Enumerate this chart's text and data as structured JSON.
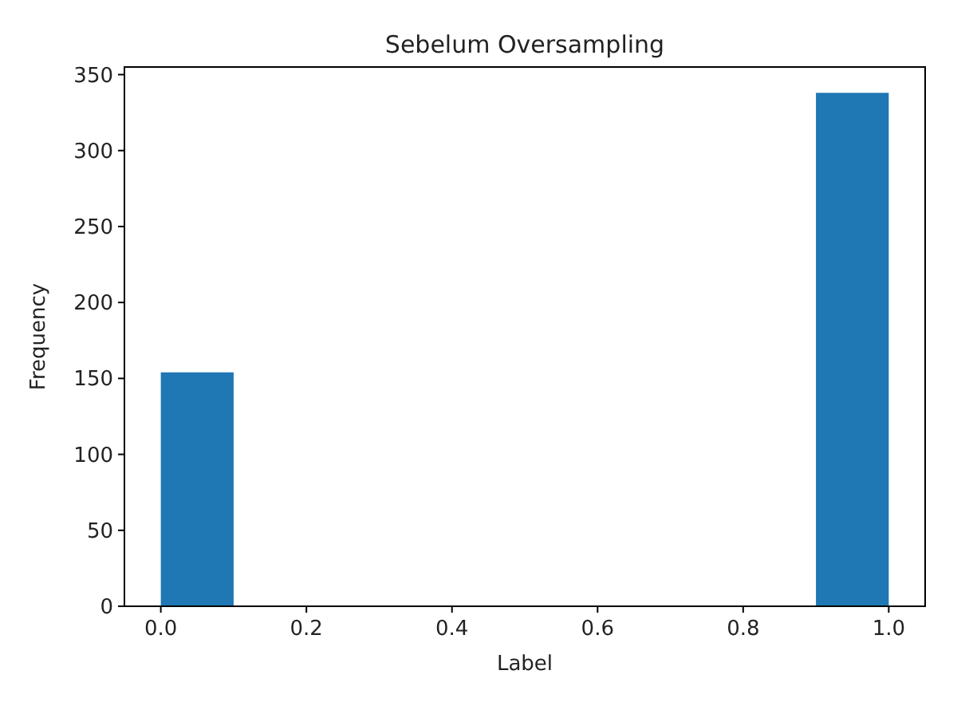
{
  "chart_data": {
    "type": "histogram",
    "title": "Sebelum Oversampling",
    "xlabel": "Label",
    "ylabel": "Frequency",
    "bins": [
      0,
      0.1,
      0.2,
      0.3,
      0.4,
      0.5,
      0.6,
      0.7,
      0.8,
      0.9,
      1.0
    ],
    "values": [
      154,
      0,
      0,
      0,
      0,
      0,
      0,
      0,
      0,
      338
    ],
    "color": "#1f77b4",
    "xlim": [
      -0.05,
      1.05
    ],
    "ylim": [
      0,
      355
    ],
    "xticks": [
      {
        "value": 0,
        "label": "0.0"
      },
      {
        "value": 0.2,
        "label": "0.2"
      },
      {
        "value": 0.4,
        "label": "0.4"
      },
      {
        "value": 0.6,
        "label": "0.6"
      },
      {
        "value": 0.8,
        "label": "0.8"
      },
      {
        "value": 1,
        "label": "1.0"
      }
    ],
    "yticks": [
      0,
      50,
      100,
      150,
      200,
      250,
      300,
      350
    ]
  }
}
